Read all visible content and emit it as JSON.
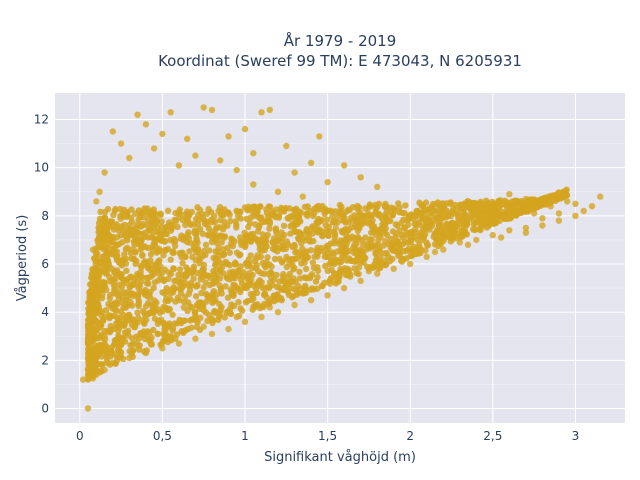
{
  "chart_data": {
    "type": "scatter",
    "title_line1": "År 1979 - 2019",
    "title_line2": "Koordinat (Sweref 99 TM): E 473043, N 6205931",
    "xlabel": "Signifikant våghöjd (m)",
    "ylabel": "Vågperiod (s)",
    "xlim": [
      -0.15,
      3.3
    ],
    "ylim": [
      -0.6,
      13.1
    ],
    "x_ticks": [
      0,
      0.5,
      1,
      1.5,
      2,
      2.5,
      3
    ],
    "x_tick_labels": [
      "0",
      "0,5",
      "1",
      "1,5",
      "2",
      "2,5",
      "3"
    ],
    "y_ticks": [
      0,
      2,
      4,
      6,
      8,
      10,
      12
    ],
    "y_tick_labels": [
      "0",
      "2",
      "4",
      "6",
      "8",
      "10",
      "12"
    ],
    "grid": true,
    "marker_color": "#D4A520",
    "plot_background": "#E5E5F0",
    "series": [
      {
        "points": [
          [
            0.05,
            0.0
          ],
          [
            0.02,
            1.2
          ],
          [
            0.05,
            1.2
          ],
          [
            0.08,
            1.25
          ],
          [
            0.1,
            1.4
          ],
          [
            0.12,
            1.5
          ],
          [
            0.15,
            1.6
          ],
          [
            0.2,
            1.9
          ],
          [
            0.3,
            2.1
          ],
          [
            0.4,
            2.3
          ],
          [
            0.5,
            2.5
          ],
          [
            0.6,
            2.7
          ],
          [
            0.7,
            2.9
          ],
          [
            0.8,
            3.1
          ],
          [
            0.9,
            3.3
          ],
          [
            1.0,
            3.6
          ],
          [
            1.1,
            3.8
          ],
          [
            1.2,
            4.0
          ],
          [
            1.3,
            4.3
          ],
          [
            1.4,
            4.5
          ],
          [
            1.5,
            4.7
          ],
          [
            1.6,
            5.0
          ],
          [
            1.7,
            5.3
          ],
          [
            1.8,
            5.6
          ],
          [
            1.9,
            5.8
          ],
          [
            2.0,
            6.0
          ],
          [
            2.1,
            6.3
          ],
          [
            2.2,
            6.6
          ],
          [
            2.3,
            6.9
          ],
          [
            2.4,
            7.0
          ],
          [
            2.5,
            7.2
          ],
          [
            2.6,
            7.4
          ],
          [
            2.7,
            7.5
          ],
          [
            2.8,
            7.6
          ],
          [
            2.9,
            7.8
          ],
          [
            3.0,
            8.0
          ],
          [
            3.05,
            8.2
          ],
          [
            3.1,
            8.4
          ],
          [
            3.15,
            8.8
          ],
          [
            2.95,
            8.6
          ],
          [
            2.85,
            8.4
          ],
          [
            2.75,
            8.1
          ],
          [
            2.7,
            8.7
          ],
          [
            2.6,
            8.9
          ],
          [
            2.55,
            8.5
          ],
          [
            2.45,
            8.3
          ],
          [
            2.4,
            8.4
          ],
          [
            2.3,
            8.0
          ],
          [
            2.2,
            8.2
          ],
          [
            2.1,
            8.1
          ],
          [
            2.0,
            7.9
          ],
          [
            1.9,
            8.3
          ],
          [
            1.85,
            8.5
          ],
          [
            1.75,
            8.0
          ],
          [
            1.65,
            7.8
          ],
          [
            1.55,
            7.5
          ],
          [
            1.2,
            9.0
          ],
          [
            1.5,
            9.4
          ],
          [
            1.8,
            9.2
          ],
          [
            1.35,
            8.8
          ],
          [
            1.05,
            9.3
          ],
          [
            0.95,
            8.2
          ],
          [
            0.2,
            11.5
          ],
          [
            0.25,
            11.0
          ],
          [
            0.35,
            12.2
          ],
          [
            0.4,
            11.8
          ],
          [
            0.5,
            11.4
          ],
          [
            0.55,
            12.3
          ],
          [
            0.65,
            11.2
          ],
          [
            0.75,
            12.5
          ],
          [
            0.8,
            12.4
          ],
          [
            0.9,
            11.3
          ],
          [
            1.0,
            11.6
          ],
          [
            1.1,
            12.3
          ],
          [
            1.15,
            12.4
          ],
          [
            0.3,
            10.4
          ],
          [
            0.45,
            10.8
          ],
          [
            0.6,
            10.1
          ],
          [
            0.7,
            10.5
          ],
          [
            0.85,
            10.3
          ],
          [
            0.95,
            9.9
          ],
          [
            1.05,
            10.6
          ],
          [
            1.25,
            10.9
          ],
          [
            1.3,
            9.8
          ],
          [
            1.4,
            10.2
          ],
          [
            1.45,
            11.3
          ],
          [
            1.6,
            10.1
          ],
          [
            1.7,
            9.6
          ],
          [
            0.12,
            9.0
          ],
          [
            0.15,
            9.8
          ],
          [
            0.1,
            8.6
          ],
          [
            0.12,
            7.5
          ],
          [
            0.08,
            6.6
          ],
          [
            0.09,
            5.3
          ],
          [
            0.08,
            4.2
          ],
          [
            0.07,
            3.2
          ],
          [
            0.06,
            2.6
          ],
          [
            0.06,
            2.0
          ],
          [
            0.05,
            1.6
          ],
          [
            0.35,
            2.6
          ],
          [
            0.55,
            3.0
          ],
          [
            0.75,
            3.4
          ],
          [
            0.95,
            3.8
          ],
          [
            1.15,
            4.2
          ],
          [
            1.35,
            4.8
          ],
          [
            1.55,
            5.2
          ],
          [
            1.75,
            5.7
          ],
          [
            1.95,
            6.1
          ],
          [
            2.15,
            6.5
          ],
          [
            2.35,
            6.8
          ],
          [
            2.55,
            7.1
          ],
          [
            2.7,
            7.3
          ],
          [
            2.8,
            7.9
          ],
          [
            2.9,
            8.1
          ],
          [
            3.0,
            8.5
          ]
        ]
      }
    ]
  }
}
